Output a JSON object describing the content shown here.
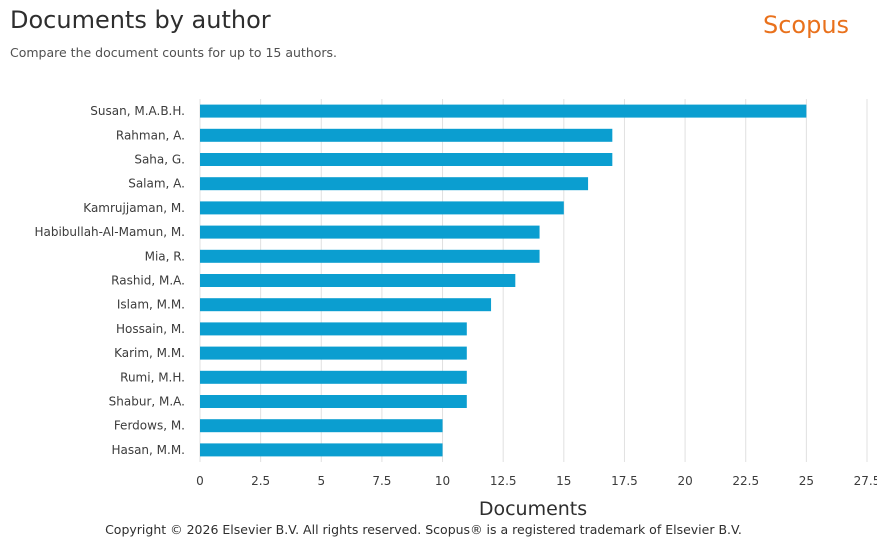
{
  "header": {
    "title": "Documents by author",
    "subtitle": "Compare the document counts for up to 15 authors.",
    "brand": "Scopus"
  },
  "footer": {
    "copyright": "Copyright © 2026 Elsevier B.V. All rights reserved. Scopus® is a registered trademark of Elsevier B.V."
  },
  "colors": {
    "bar": "#0b9ed0",
    "brand": "#e9711c",
    "grid": "#e0e0e0"
  },
  "chart_data": {
    "type": "bar",
    "orientation": "horizontal",
    "title": "Documents by author",
    "xlabel": "Documents",
    "ylabel": "",
    "xlim": [
      0,
      27.5
    ],
    "xticks": [
      0,
      2.5,
      5,
      7.5,
      10,
      12.5,
      15,
      17.5,
      20,
      22.5,
      25,
      27.5
    ],
    "xtick_labels": [
      "0",
      "2.5",
      "5",
      "7.5",
      "10",
      "12.5",
      "15",
      "17.5",
      "20",
      "22.5",
      "25",
      "27.5"
    ],
    "grid": true,
    "categories": [
      "Susan, M.A.B.H.",
      "Rahman, A.",
      "Saha, G.",
      "Salam, A.",
      "Kamrujjaman, M.",
      "Habibullah-Al-Mamun, M.",
      "Mia, R.",
      "Rashid, M.A.",
      "Islam, M.M.",
      "Hossain, M.",
      "Karim, M.M.",
      "Rumi, M.H.",
      "Shabur, M.A.",
      "Ferdows, M.",
      "Hasan, M.M."
    ],
    "values": [
      25,
      17,
      17,
      16,
      15,
      14,
      14,
      13,
      12,
      11,
      11,
      11,
      11,
      10,
      10
    ]
  }
}
